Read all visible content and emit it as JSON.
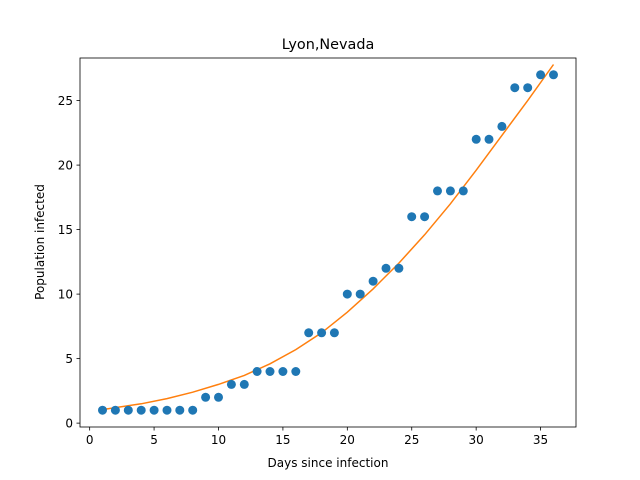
{
  "chart_data": {
    "type": "scatter",
    "title": "Lyon,Nevada",
    "xlabel": "Days since infection",
    "ylabel": "Population infected",
    "xlim": [
      -0.75,
      37.75
    ],
    "ylim": [
      -0.3,
      28.3
    ],
    "xticks": [
      0,
      5,
      10,
      15,
      20,
      25,
      30,
      35
    ],
    "yticks": [
      0,
      5,
      10,
      15,
      20,
      25
    ],
    "grid": false,
    "colors": {
      "points": "#1f77b4",
      "fit": "#ff7f0e"
    },
    "series": [
      {
        "kind": "scatter",
        "x": [
          1,
          2,
          3,
          4,
          5,
          6,
          7,
          8,
          9,
          10,
          11,
          12,
          13,
          14,
          15,
          16,
          17,
          18,
          19,
          20,
          21,
          22,
          23,
          24,
          25,
          26,
          27,
          28,
          29,
          30,
          31,
          32,
          33,
          34,
          35,
          36
        ],
        "y": [
          1,
          1,
          1,
          1,
          1,
          1,
          1,
          1,
          2,
          2,
          3,
          3,
          4,
          4,
          4,
          4,
          7,
          7,
          7,
          10,
          10,
          11,
          12,
          12,
          16,
          16,
          18,
          18,
          18,
          22,
          22,
          23,
          26,
          26,
          27,
          27
        ]
      },
      {
        "kind": "line",
        "x": [
          1,
          2,
          4,
          6,
          8,
          10,
          12,
          14,
          16,
          18,
          20,
          22,
          24,
          26,
          28,
          30,
          32,
          34,
          36
        ],
        "y": [
          1.05,
          1.2,
          1.5,
          1.9,
          2.4,
          3.0,
          3.7,
          4.6,
          5.7,
          7.0,
          8.6,
          10.4,
          12.4,
          14.6,
          17.0,
          19.6,
          22.3,
          25.0,
          27.8
        ]
      }
    ]
  }
}
